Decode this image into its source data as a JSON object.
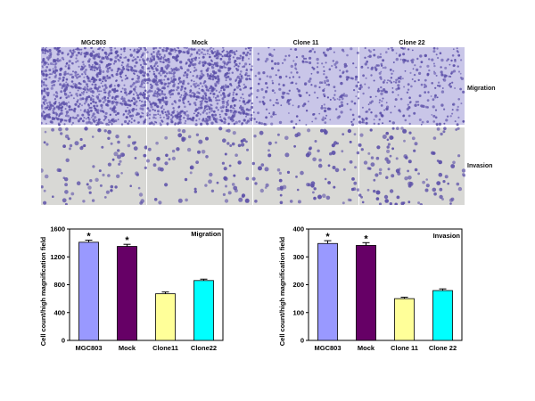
{
  "micrographs": {
    "columns": [
      "MGC803",
      "Mock",
      "Clone 11",
      "Clone 22"
    ],
    "rows": [
      "Migration",
      "Invasion"
    ],
    "colors": {
      "migration_bg": "#c9c6e8",
      "invasion_bg": "#d8d8d5",
      "cell": "#5b4fa8"
    }
  },
  "chart_data": [
    {
      "type": "bar",
      "title": "Migration",
      "ylabel": "Cell count/high magnification field",
      "xlabel": "",
      "categories": [
        "MGC803",
        "Mock",
        "Clone11",
        "Clone22"
      ],
      "values": [
        1410,
        1350,
        670,
        860
      ],
      "errors": [
        30,
        30,
        25,
        20
      ],
      "significance": [
        "*",
        "*",
        "",
        ""
      ],
      "ylim": [
        0,
        1600
      ],
      "yticks": [
        0,
        400,
        800,
        1200,
        1600
      ],
      "colors": [
        "#9999ff",
        "#660066",
        "#ffff99",
        "#00ffff"
      ],
      "grid": false
    },
    {
      "type": "bar",
      "title": "Invasion",
      "ylabel": "Cell count/high magnification field",
      "xlabel": "",
      "categories": [
        "MGC803",
        "Mock",
        "Clone 11",
        "Clone 22"
      ],
      "values": [
        348,
        341,
        150,
        179
      ],
      "errors": [
        10,
        10,
        5,
        6
      ],
      "significance": [
        "*",
        "*",
        "",
        ""
      ],
      "ylim": [
        0,
        400
      ],
      "yticks": [
        0,
        100,
        200,
        300,
        400
      ],
      "colors": [
        "#9999ff",
        "#660066",
        "#ffff99",
        "#00ffff"
      ],
      "grid": false
    }
  ]
}
